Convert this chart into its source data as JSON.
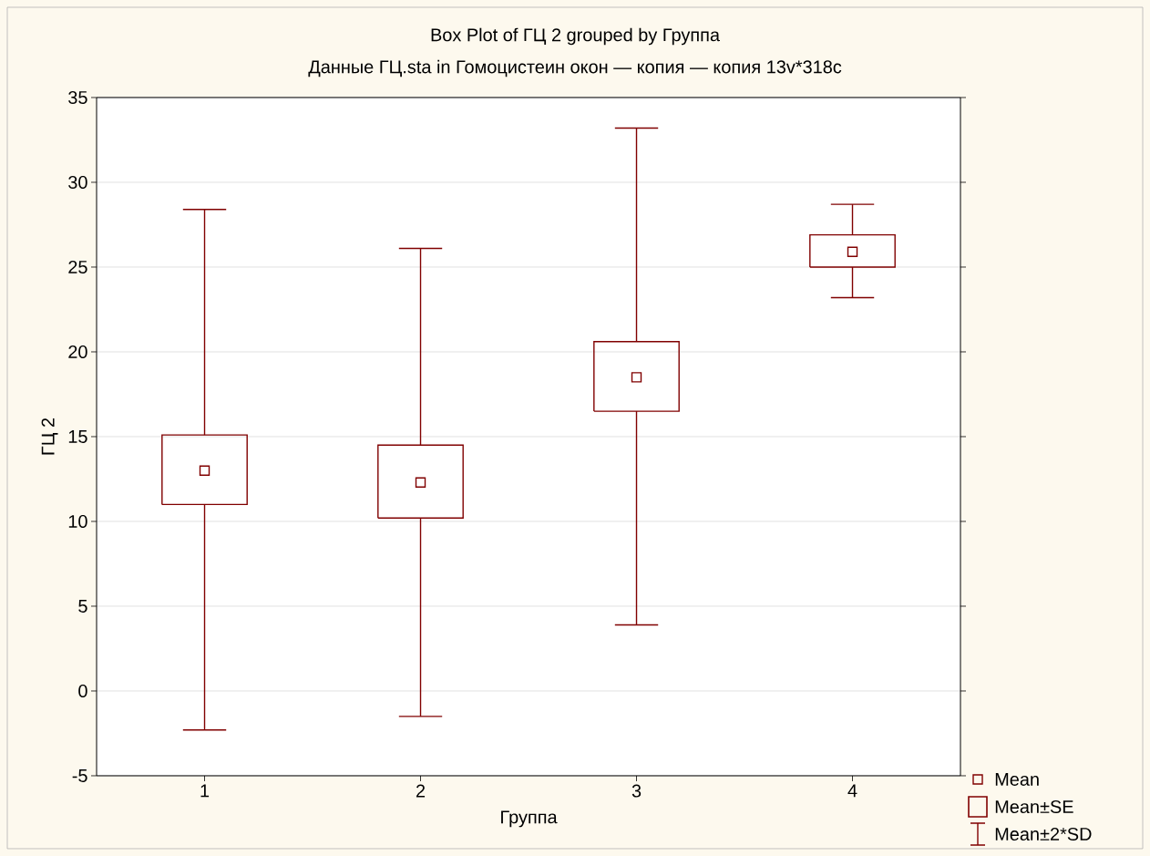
{
  "chart_data": {
    "type": "box",
    "title": "Box Plot of ГЦ 2 grouped by  Группа",
    "subtitle": "Данные ГЦ.sta in Гомоцистеин окон — копия — копия 13v*318c",
    "xlabel": "Группа",
    "ylabel": "ГЦ 2",
    "categories": [
      "1",
      "2",
      "3",
      "4"
    ],
    "series": [
      {
        "color": "#800000",
        "boxes": [
          {
            "low": -2.3,
            "q1": 11.0,
            "median": 13.0,
            "q3": 15.1,
            "high": 28.4
          },
          {
            "low": -1.5,
            "q1": 10.2,
            "median": 12.3,
            "q3": 14.5,
            "high": 26.1
          },
          {
            "low": 3.9,
            "q1": 16.5,
            "median": 18.5,
            "q3": 20.6,
            "high": 33.2
          },
          {
            "low": 23.2,
            "q1": 25.0,
            "median": 25.9,
            "q3": 26.9,
            "high": 28.7
          }
        ]
      }
    ],
    "ylim": [
      -5,
      35
    ],
    "yticks": [
      -5,
      0,
      5,
      10,
      15,
      20,
      25,
      30,
      35
    ],
    "grid": "y",
    "marker": "square",
    "annotations": [
      "Mean",
      "Mean±SE",
      "Mean±2*SD"
    ]
  }
}
